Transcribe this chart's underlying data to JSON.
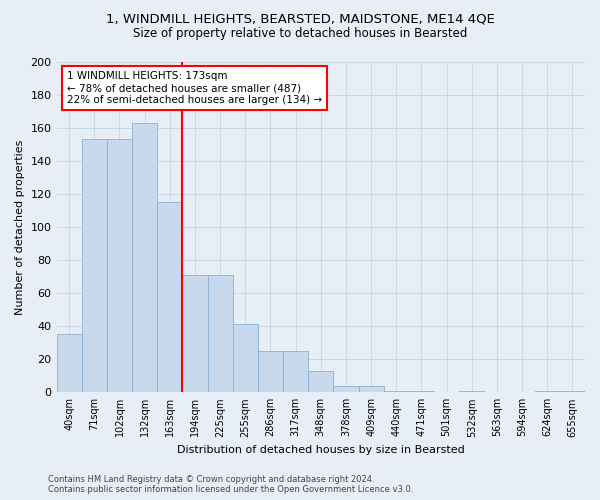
{
  "title1": "1, WINDMILL HEIGHTS, BEARSTED, MAIDSTONE, ME14 4QE",
  "title2": "Size of property relative to detached houses in Bearsted",
  "xlabel": "Distribution of detached houses by size in Bearsted",
  "ylabel": "Number of detached properties",
  "footnote1": "Contains HM Land Registry data © Crown copyright and database right 2024.",
  "footnote2": "Contains public sector information licensed under the Open Government Licence v3.0.",
  "categories": [
    "40sqm",
    "71sqm",
    "102sqm",
    "132sqm",
    "163sqm",
    "194sqm",
    "225sqm",
    "255sqm",
    "286sqm",
    "317sqm",
    "348sqm",
    "378sqm",
    "409sqm",
    "440sqm",
    "471sqm",
    "501sqm",
    "532sqm",
    "563sqm",
    "594sqm",
    "624sqm",
    "655sqm"
  ],
  "values": [
    35,
    153,
    153,
    163,
    115,
    71,
    71,
    41,
    25,
    25,
    13,
    4,
    4,
    1,
    1,
    0,
    1,
    0,
    0,
    1,
    1
  ],
  "bar_color": "#c9d9ed",
  "bar_edge_color": "#8aafd4",
  "vline_color": "red",
  "vline_x": 4.5,
  "annotation_text": "1 WINDMILL HEIGHTS: 173sqm\n← 78% of detached houses are smaller (487)\n22% of semi-detached houses are larger (134) →",
  "annotation_box_color": "white",
  "annotation_box_edge": "red",
  "ylim": [
    0,
    200
  ],
  "yticks": [
    0,
    20,
    40,
    60,
    80,
    100,
    120,
    140,
    160,
    180,
    200
  ],
  "grid_color": "#c5d5e8",
  "bg_color": "#e8eef6"
}
